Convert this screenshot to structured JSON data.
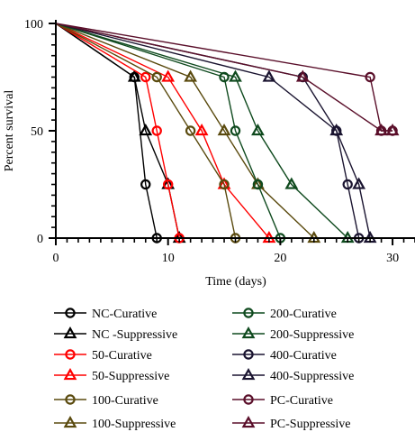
{
  "chart_data": {
    "type": "line",
    "title": "",
    "xlabel": "Time (days)",
    "ylabel": "Percent survival",
    "xlim": [
      0,
      32
    ],
    "ylim": [
      0,
      100
    ],
    "x_ticks": [
      0,
      10,
      20,
      30
    ],
    "x_minor_step": 1,
    "y_ticks": [
      0,
      50,
      100
    ],
    "y_minor_step": 5,
    "grid": false,
    "legend_position": "bottom",
    "series": [
      {
        "name": "NC-Curative",
        "marker": "circle",
        "color": "#000000",
        "x": [
          0,
          7,
          8,
          9
        ],
        "y": [
          100,
          75,
          25,
          0
        ]
      },
      {
        "name": "NC -Suppressive",
        "marker": "triangle",
        "color": "#000000",
        "x": [
          0,
          7,
          8,
          10,
          11
        ],
        "y": [
          100,
          75,
          50,
          25,
          0
        ]
      },
      {
        "name": "50-Curative",
        "marker": "circle",
        "color": "#ff0000",
        "x": [
          0,
          8,
          9,
          10,
          11
        ],
        "y": [
          100,
          75,
          50,
          25,
          0
        ]
      },
      {
        "name": "50-Suppressive",
        "marker": "triangle",
        "color": "#ff0000",
        "x": [
          0,
          10,
          13,
          15,
          19
        ],
        "y": [
          100,
          75,
          50,
          25,
          0
        ]
      },
      {
        "name": "100-Curative",
        "marker": "circle",
        "color": "#5a4a0e",
        "x": [
          0,
          9,
          12,
          15,
          16
        ],
        "y": [
          100,
          75,
          50,
          25,
          0
        ]
      },
      {
        "name": "100-Suppressive",
        "marker": "triangle",
        "color": "#5a4a0e",
        "x": [
          0,
          12,
          15,
          18,
          23
        ],
        "y": [
          100,
          75,
          50,
          25,
          0
        ]
      },
      {
        "name": "200-Curative",
        "marker": "circle",
        "color": "#0f4a1e",
        "x": [
          0,
          15,
          16,
          18,
          20
        ],
        "y": [
          100,
          75,
          50,
          25,
          0
        ]
      },
      {
        "name": "200-Suppressive",
        "marker": "triangle",
        "color": "#0f4a1e",
        "x": [
          0,
          16,
          18,
          21,
          26
        ],
        "y": [
          100,
          75,
          50,
          25,
          0
        ]
      },
      {
        "name": "400-Curative",
        "marker": "circle",
        "color": "#1a1430",
        "x": [
          0,
          22,
          25,
          26,
          27
        ],
        "y": [
          100,
          75,
          50,
          25,
          0
        ]
      },
      {
        "name": "400-Suppressive",
        "marker": "triangle",
        "color": "#1a1430",
        "x": [
          0,
          19,
          25,
          27,
          28
        ],
        "y": [
          100,
          75,
          50,
          25,
          0
        ]
      },
      {
        "name": "PC-Curative",
        "marker": "circle",
        "color": "#5a0f2a",
        "x": [
          0,
          28,
          29,
          30
        ],
        "y": [
          100,
          75,
          50,
          50
        ]
      },
      {
        "name": "PC-Suppressive",
        "marker": "triangle",
        "color": "#5a0f2a",
        "x": [
          0,
          22,
          29,
          30
        ],
        "y": [
          100,
          75,
          50,
          50
        ]
      }
    ]
  }
}
